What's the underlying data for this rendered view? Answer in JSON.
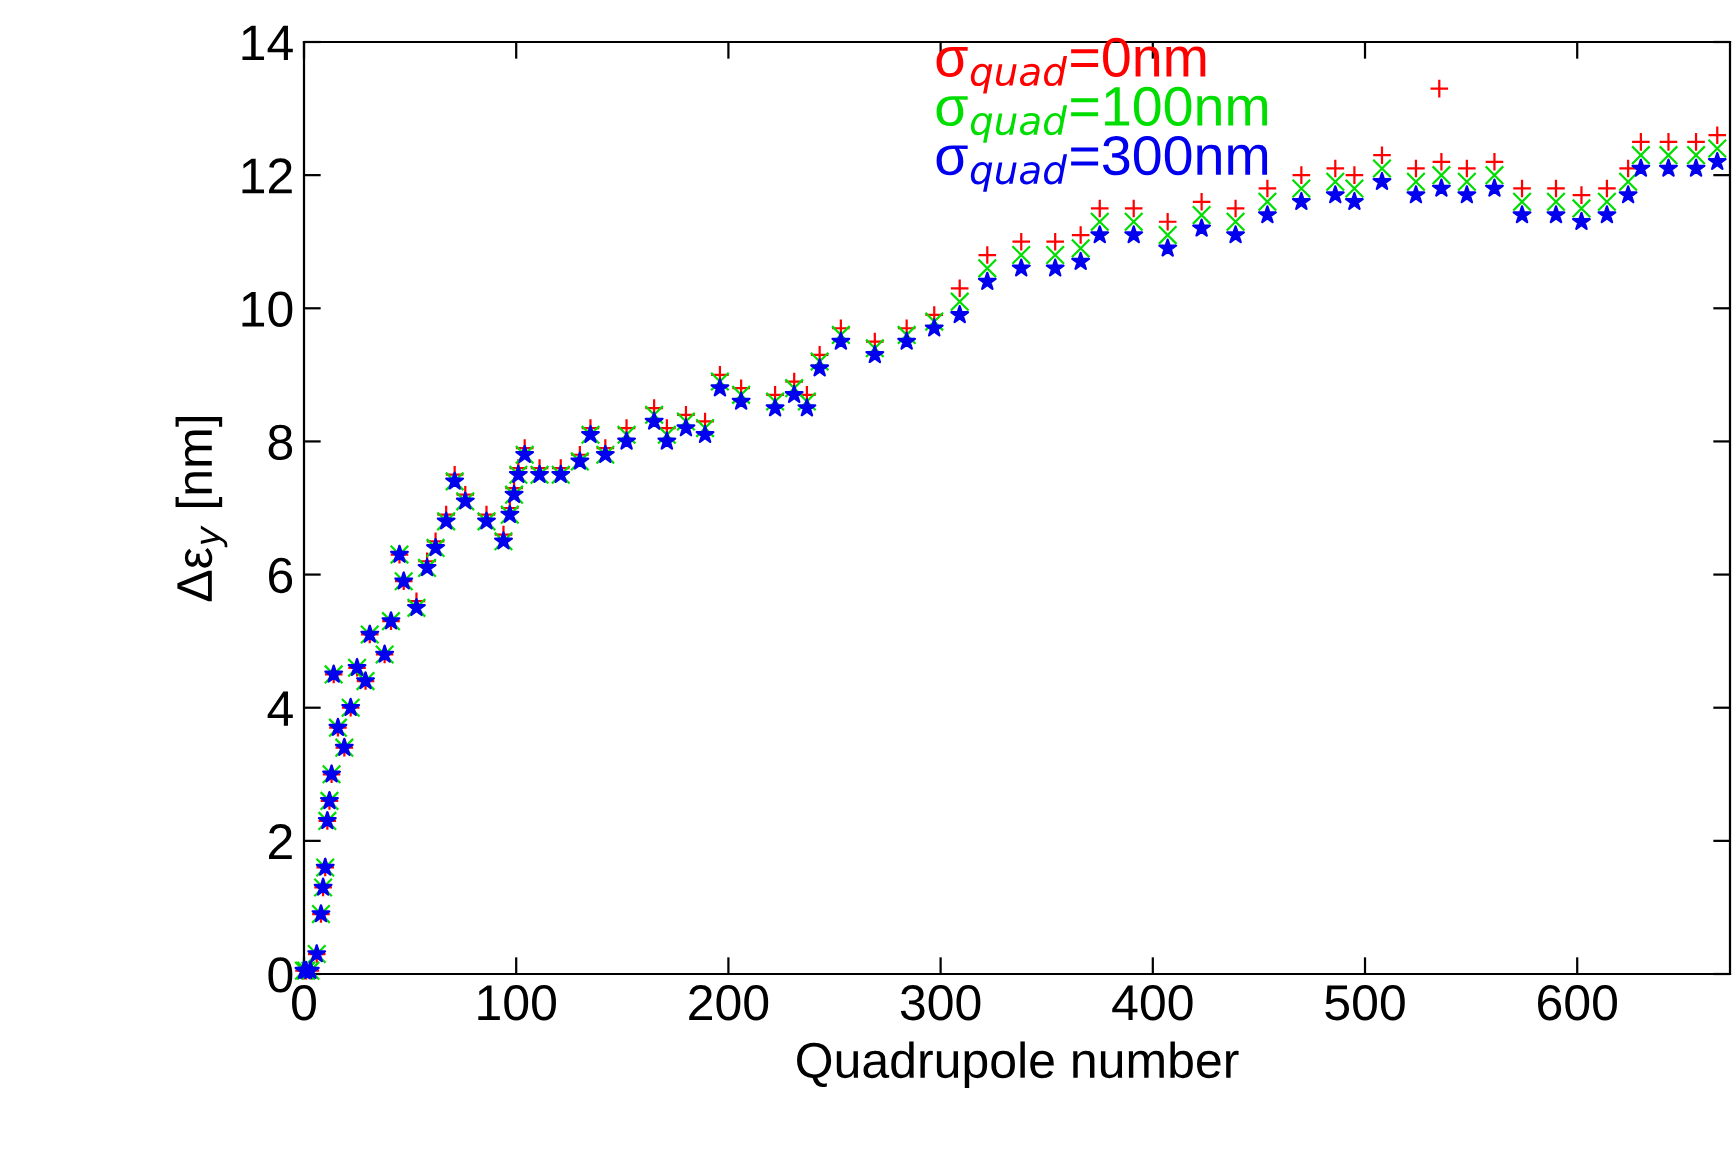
{
  "chart_data": {
    "type": "scatter",
    "xlabel": "Quadrupole number",
    "ylabel": "Δε$_{y}$ [nm]",
    "xlim": [
      0,
      672
    ],
    "xticks": [
      0,
      100,
      200,
      300,
      400,
      500,
      600
    ],
    "ylim": [
      0,
      14
    ],
    "yticks": [
      0,
      2,
      4,
      6,
      8,
      10,
      12,
      14
    ],
    "grid": false,
    "legend": "top",
    "series": [
      {
        "name": "σ$_{quad}$=0nm",
        "color": "#ff0000",
        "marker": "plus",
        "x": [
          0,
          1,
          3,
          6,
          8,
          9,
          10,
          11,
          12,
          13,
          14,
          16,
          19,
          22,
          25,
          29,
          31,
          38,
          41,
          45,
          47,
          53,
          58,
          62,
          67,
          71,
          76,
          86,
          94,
          97,
          99,
          101,
          104,
          111,
          121,
          130,
          135,
          142,
          152,
          165,
          171,
          180,
          189,
          196,
          206,
          222,
          231,
          237,
          243,
          253,
          269,
          284,
          297,
          309,
          322,
          338,
          354,
          366,
          375,
          391,
          407,
          423,
          439,
          454,
          470,
          486,
          495,
          508,
          524,
          536,
          548,
          561,
          574,
          590,
          602,
          614,
          624,
          630,
          643,
          656,
          666,
          535
        ],
        "values": [
          0.05,
          0.05,
          0.05,
          0.3,
          0.9,
          1.3,
          1.6,
          2.3,
          2.6,
          3.0,
          4.5,
          3.7,
          3.4,
          4.0,
          4.6,
          4.4,
          5.1,
          4.8,
          5.3,
          6.3,
          5.9,
          5.6,
          6.2,
          6.5,
          6.9,
          7.5,
          7.2,
          6.9,
          6.6,
          7.0,
          7.3,
          7.6,
          7.9,
          7.6,
          7.6,
          7.8,
          8.2,
          7.9,
          8.2,
          8.5,
          8.2,
          8.4,
          8.3,
          9.0,
          8.8,
          8.7,
          8.9,
          8.7,
          9.3,
          9.7,
          9.5,
          9.7,
          9.9,
          10.3,
          10.8,
          11.0,
          11.0,
          11.1,
          11.5,
          11.5,
          11.3,
          11.6,
          11.5,
          11.8,
          12.0,
          12.1,
          12.0,
          12.3,
          12.1,
          12.2,
          12.1,
          12.2,
          11.8,
          11.8,
          11.7,
          11.8,
          12.1,
          12.5,
          12.5,
          12.5,
          12.6,
          13.3
        ]
      },
      {
        "name": "σ$_{quad}$=100nm",
        "color": "#00dd00",
        "marker": "cross",
        "x": [
          0,
          1,
          3,
          6,
          8,
          9,
          10,
          11,
          12,
          13,
          14,
          16,
          19,
          22,
          25,
          29,
          31,
          38,
          41,
          45,
          47,
          53,
          58,
          62,
          67,
          71,
          76,
          86,
          94,
          97,
          99,
          101,
          104,
          111,
          121,
          130,
          135,
          142,
          152,
          165,
          171,
          180,
          189,
          196,
          206,
          222,
          231,
          237,
          243,
          253,
          269,
          284,
          297,
          309,
          322,
          338,
          354,
          366,
          375,
          391,
          407,
          423,
          439,
          454,
          470,
          486,
          495,
          508,
          524,
          536,
          548,
          561,
          574,
          590,
          602,
          614,
          624,
          630,
          643,
          656,
          666
        ],
        "values": [
          0.05,
          0.05,
          0.05,
          0.3,
          0.9,
          1.3,
          1.6,
          2.3,
          2.6,
          3.0,
          4.5,
          3.7,
          3.4,
          4.0,
          4.6,
          4.4,
          5.1,
          4.8,
          5.3,
          6.3,
          5.9,
          5.5,
          6.1,
          6.4,
          6.8,
          7.4,
          7.1,
          6.8,
          6.5,
          6.9,
          7.2,
          7.5,
          7.8,
          7.5,
          7.5,
          7.7,
          8.1,
          7.8,
          8.1,
          8.4,
          8.1,
          8.3,
          8.2,
          8.9,
          8.7,
          8.6,
          8.8,
          8.6,
          9.2,
          9.6,
          9.4,
          9.6,
          9.8,
          10.1,
          10.6,
          10.8,
          10.8,
          10.9,
          11.3,
          11.3,
          11.1,
          11.4,
          11.3,
          11.6,
          11.8,
          11.9,
          11.8,
          12.1,
          11.9,
          12.0,
          11.9,
          12.0,
          11.6,
          11.6,
          11.5,
          11.6,
          11.9,
          12.3,
          12.3,
          12.3,
          12.4
        ]
      },
      {
        "name": "σ$_{quad}$=300nm",
        "color": "#0000ee",
        "marker": "star",
        "x": [
          0,
          1,
          3,
          6,
          8,
          9,
          10,
          11,
          12,
          13,
          14,
          16,
          19,
          22,
          25,
          29,
          31,
          38,
          41,
          45,
          47,
          53,
          58,
          62,
          67,
          71,
          76,
          86,
          94,
          97,
          99,
          101,
          104,
          111,
          121,
          130,
          135,
          142,
          152,
          165,
          171,
          180,
          189,
          196,
          206,
          222,
          231,
          237,
          243,
          253,
          269,
          284,
          297,
          309,
          322,
          338,
          354,
          366,
          375,
          391,
          407,
          423,
          439,
          454,
          470,
          486,
          495,
          508,
          524,
          536,
          548,
          561,
          574,
          590,
          602,
          614,
          624,
          630,
          643,
          656,
          666
        ],
        "values": [
          0.05,
          0.05,
          0.05,
          0.3,
          0.9,
          1.3,
          1.6,
          2.3,
          2.6,
          3.0,
          4.5,
          3.7,
          3.4,
          4.0,
          4.6,
          4.4,
          5.1,
          4.8,
          5.3,
          6.3,
          5.9,
          5.5,
          6.1,
          6.4,
          6.8,
          7.4,
          7.1,
          6.8,
          6.5,
          6.9,
          7.2,
          7.5,
          7.8,
          7.5,
          7.5,
          7.7,
          8.1,
          7.8,
          8.0,
          8.3,
          8.0,
          8.2,
          8.1,
          8.8,
          8.6,
          8.5,
          8.7,
          8.5,
          9.1,
          9.5,
          9.3,
          9.5,
          9.7,
          9.9,
          10.4,
          10.6,
          10.6,
          10.7,
          11.1,
          11.1,
          10.9,
          11.2,
          11.1,
          11.4,
          11.6,
          11.7,
          11.6,
          11.9,
          11.7,
          11.8,
          11.7,
          11.8,
          11.4,
          11.4,
          11.3,
          11.4,
          11.7,
          12.1,
          12.1,
          12.1,
          12.2
        ]
      }
    ]
  }
}
